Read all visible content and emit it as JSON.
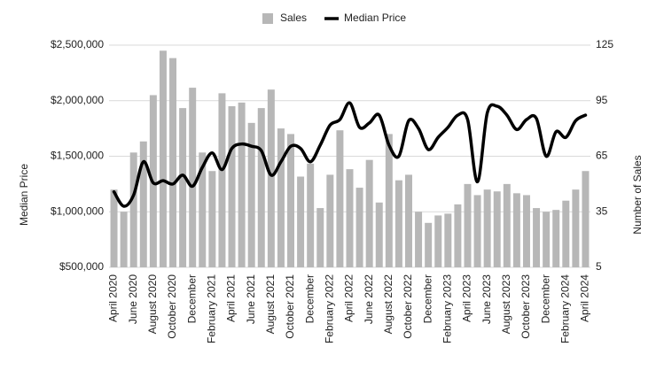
{
  "chart_data": {
    "type": "bar-line",
    "categories": [
      "April 2020",
      null,
      "June 2020",
      null,
      "August 2020",
      null,
      "October 2020",
      null,
      "December",
      null,
      "February 2021",
      null,
      "April 2021",
      null,
      "June 2021",
      null,
      "August 2021",
      null,
      "October 2021",
      null,
      "December",
      null,
      "February 2022",
      null,
      "April 2022",
      null,
      "June 2022",
      null,
      "August 2022",
      null,
      "October 2022",
      null,
      "December",
      null,
      "February 2023",
      null,
      "April 2023",
      null,
      "June 2023",
      null,
      "August 2023",
      null,
      "October 2023",
      null,
      "December",
      null,
      "February 2024",
      null,
      "April 2024"
    ],
    "series": [
      {
        "name": "Sales",
        "type": "bar",
        "axis": "y2",
        "color": "#b7b7b7",
        "values": [
          47,
          35,
          67,
          73,
          98,
          122,
          118,
          91,
          102,
          67,
          57,
          99,
          92,
          94,
          83,
          91,
          101,
          80,
          77,
          54,
          61,
          37,
          55,
          79,
          58,
          48,
          63,
          40,
          77,
          52,
          55,
          35,
          29,
          33,
          34,
          39,
          50,
          44,
          47,
          46,
          50,
          45,
          44,
          37,
          35,
          36,
          41,
          47,
          57
        ]
      },
      {
        "name": "Median Price",
        "type": "line",
        "color": "#000000",
        "values": [
          1180000,
          1050000,
          1150000,
          1450000,
          1260000,
          1280000,
          1250000,
          1330000,
          1230000,
          1400000,
          1530000,
          1380000,
          1570000,
          1610000,
          1590000,
          1550000,
          1330000,
          1450000,
          1590000,
          1570000,
          1450000,
          1600000,
          1780000,
          1830000,
          1980000,
          1760000,
          1800000,
          1870000,
          1600000,
          1500000,
          1820000,
          1750000,
          1560000,
          1670000,
          1760000,
          1870000,
          1830000,
          1270000,
          1890000,
          1950000,
          1870000,
          1740000,
          1830000,
          1840000,
          1500000,
          1720000,
          1670000,
          1820000,
          1870000
        ]
      }
    ],
    "y_label": "Median Price",
    "y2_label": "Number of Sales",
    "ylim": [
      500000,
      2500000
    ],
    "yticks": [
      {
        "value": 500000,
        "label": "$500,000"
      },
      {
        "value": 1000000,
        "label": "$1,000,000"
      },
      {
        "value": 1500000,
        "label": "$1,500,000"
      },
      {
        "value": 2000000,
        "label": "$2,000,000"
      },
      {
        "value": 2500000,
        "label": "$2,500,000"
      }
    ],
    "y2lim": [
      5,
      125
    ],
    "y2ticks": [
      5,
      35,
      65,
      95,
      125
    ],
    "grid": true,
    "legend": "top"
  }
}
